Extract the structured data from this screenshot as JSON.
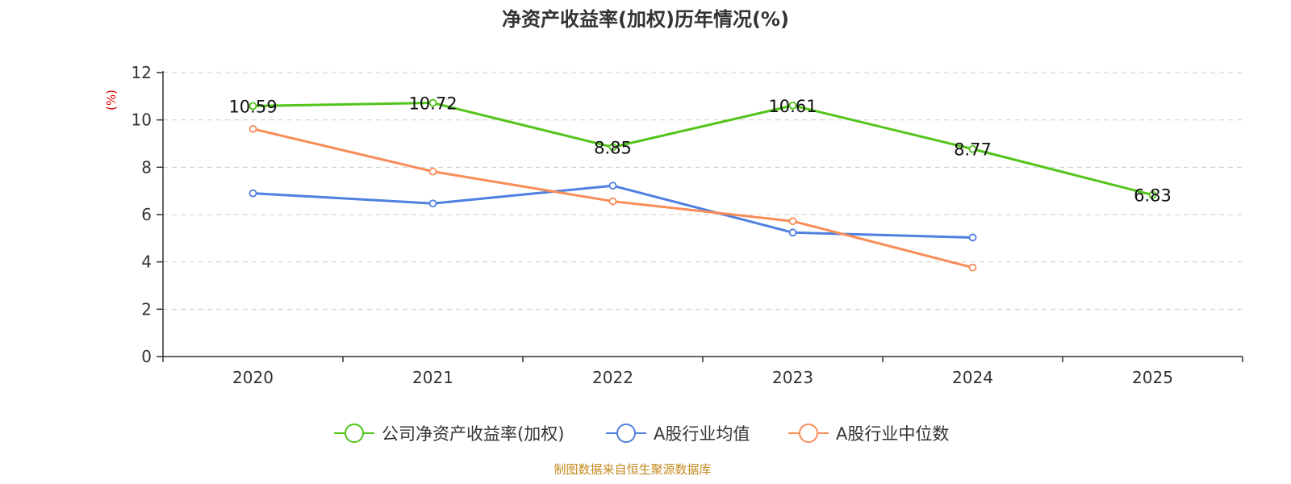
{
  "chart_data": {
    "type": "line",
    "title": "净资产收益率(加权)历年情况(%)",
    "ylabel": "(%)",
    "xlabel": "",
    "ylim": [
      0,
      12
    ],
    "yticks": [
      0,
      2,
      4,
      6,
      8,
      10,
      12
    ],
    "grid": "horizontal dashed",
    "categories": [
      "2020",
      "2021",
      "2022",
      "2023",
      "2024",
      "2025"
    ],
    "series": [
      {
        "name": "公司净资产收益率(加权)",
        "color": "#52c41a",
        "values": [
          10.59,
          10.72,
          8.85,
          10.61,
          8.77,
          6.83
        ],
        "labels": [
          "10.59",
          "10.72",
          "8.85",
          "10.61",
          "8.77",
          "6.83"
        ],
        "show_labels": true
      },
      {
        "name": "A股行业均值",
        "color": "#4f7fdf",
        "values": [
          6.9,
          6.47,
          7.22,
          5.24,
          5.03,
          null
        ],
        "show_labels": false
      },
      {
        "name": "A股行业中位数",
        "color": "#f88d58",
        "values": [
          9.62,
          7.82,
          6.56,
          5.72,
          3.76,
          null
        ],
        "show_labels": false
      }
    ],
    "legend_position": "bottom-center",
    "source": "制图数据来自恒生聚源数据库"
  }
}
